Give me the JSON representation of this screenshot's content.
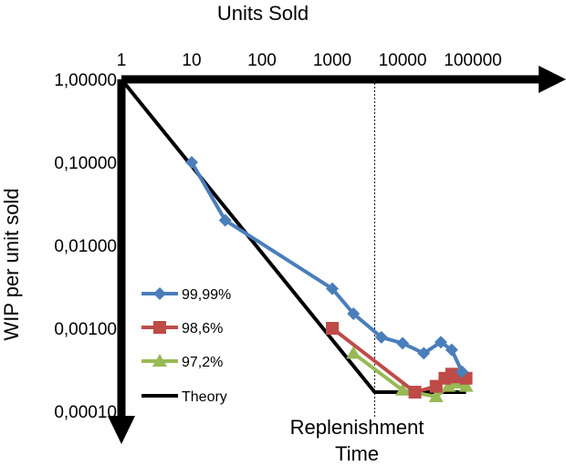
{
  "chart_data": {
    "type": "line",
    "xlabel": "Units Sold",
    "ylabel": "WIP per unit sold",
    "xscale": "log",
    "yscale": "log",
    "x_ticks": [
      "1",
      "10",
      "100",
      "1000",
      "10000",
      "100000"
    ],
    "y_ticks": [
      "1,00000",
      "0,10000",
      "0,01000",
      "0,00100",
      "0,00010"
    ],
    "xlim": [
      1,
      1000000
    ],
    "ylim": [
      0.0001,
      1
    ],
    "grid": false,
    "legend_position": "lower-left",
    "annotation": {
      "text_line1": "Replenishment",
      "text_line2": "Time",
      "x": 4000
    },
    "series": [
      {
        "name": "99,99%",
        "color": "#4a7ebb",
        "marker": "diamond",
        "x": [
          10,
          30,
          1000,
          2000,
          5000,
          10000,
          20000,
          35000,
          50000,
          70000
        ],
        "y": [
          0.1,
          0.02,
          0.003,
          0.0015,
          0.00078,
          0.00066,
          0.0005,
          0.00068,
          0.00055,
          0.0003
        ]
      },
      {
        "name": "98,6%",
        "color": "#be4b48",
        "marker": "square",
        "x": [
          1000,
          15000,
          30000,
          40000,
          50000,
          60000,
          80000
        ],
        "y": [
          0.001,
          0.00017,
          0.0002,
          0.00025,
          0.00028,
          0.00026,
          0.00025
        ]
      },
      {
        "name": "97,2%",
        "color": "#98b954",
        "marker": "triangle",
        "x": [
          2000,
          10000,
          30000,
          45000,
          60000,
          80000
        ],
        "y": [
          0.0005,
          0.00018,
          0.00015,
          0.0002,
          0.00022,
          0.0002
        ]
      },
      {
        "name": "Theory",
        "color": "#000000",
        "marker": "none",
        "x": [
          1,
          4000,
          80000
        ],
        "y": [
          1,
          0.00017,
          0.00017
        ]
      }
    ]
  }
}
